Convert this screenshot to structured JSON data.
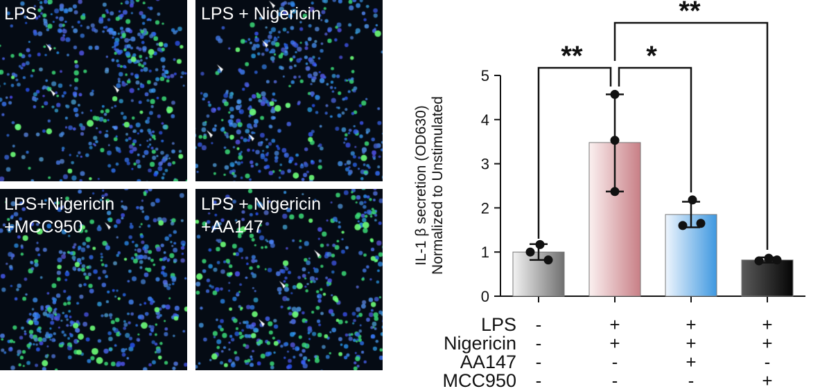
{
  "panels": [
    {
      "label_lines": [
        "LPS"
      ],
      "green_level": 0.45,
      "arrowheads": 3
    },
    {
      "label_lines": [
        "LPS + Nigericin"
      ],
      "green_level": 0.35,
      "arrowheads": 5
    },
    {
      "label_lines": [
        "LPS+Nigericin",
        "+MCC950"
      ],
      "green_level": 0.55,
      "arrowheads": 1
    },
    {
      "label_lines": [
        "LPS + Nigericin",
        "+AA147"
      ],
      "green_level": 0.75,
      "arrowheads": 3
    }
  ],
  "chart_data": {
    "type": "bar",
    "ylabel_lines": [
      "IL-1 β secretion (OD630)",
      "Normalized to Unstimulated"
    ],
    "ylim": [
      0,
      5
    ],
    "yticks": [
      "0",
      "1",
      "2",
      "3",
      "4",
      "5"
    ],
    "bars": [
      {
        "value": 1.0,
        "err_low": 0.82,
        "err_high": 1.18,
        "points": [
          1.0,
          1.17,
          0.82
        ],
        "color_light": "#f2f2f2",
        "color_dark": "#707070"
      },
      {
        "value": 3.48,
        "err_low": 2.37,
        "err_high": 4.57,
        "points": [
          2.37,
          3.53,
          4.57
        ],
        "color_light": "#fbf0f0",
        "color_dark": "#c87f86"
      },
      {
        "value": 1.85,
        "err_low": 1.56,
        "err_high": 2.14,
        "points": [
          1.6,
          2.18,
          1.65
        ],
        "color_light": "#eef5fd",
        "color_dark": "#3f98e0"
      },
      {
        "value": 0.82,
        "err_low": 0.76,
        "err_high": 0.88,
        "points": [
          0.8,
          0.86,
          0.82
        ],
        "color_light": "#5a5a5a",
        "color_dark": "#050505"
      }
    ],
    "conditions": [
      {
        "name": "LPS",
        "values": [
          "-",
          "+",
          "+",
          "+"
        ]
      },
      {
        "name": "Nigericin",
        "values": [
          "-",
          "+",
          "+",
          "+"
        ]
      },
      {
        "name": "AA147",
        "values": [
          "-",
          "-",
          "+",
          "-"
        ]
      },
      {
        "name": "MCC950",
        "values": [
          "-",
          "-",
          "-",
          "+"
        ]
      }
    ],
    "significance": [
      {
        "from": 0,
        "to": 1,
        "label": "**",
        "level": 5.2
      },
      {
        "from": 1,
        "to": 2,
        "label": "*",
        "level": 5.2
      },
      {
        "from": 1,
        "to": 3,
        "label": "**",
        "level": 6.2
      }
    ]
  }
}
